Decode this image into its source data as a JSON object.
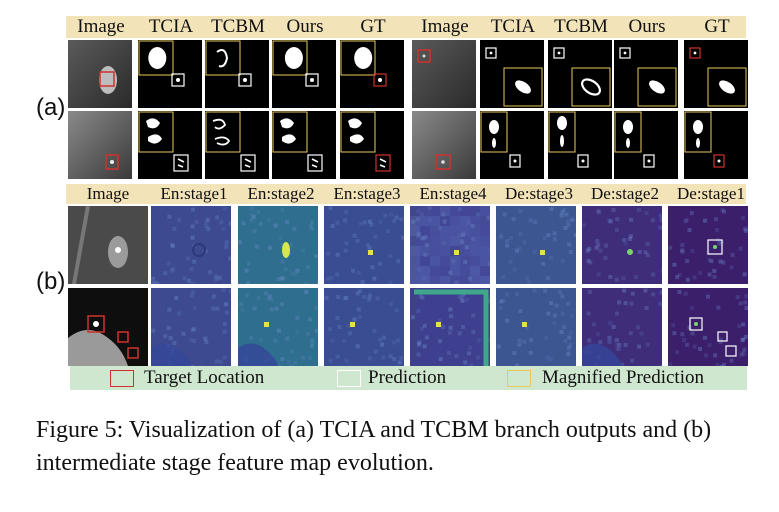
{
  "panel_a": {
    "label": "(a)",
    "headers": [
      "Image",
      "TCIA",
      "TCBM",
      "Ours",
      "GT",
      "Image",
      "TCIA",
      "TCBM",
      "Ours",
      "GT"
    ]
  },
  "panel_b": {
    "label": "(b)",
    "headers": [
      "Image",
      "En:stage1",
      "En:stage2",
      "En:stage3",
      "En:stage4",
      "De:stage3",
      "De:stage2",
      "De:stage1"
    ]
  },
  "legend": {
    "target_location": "Target Location",
    "prediction": "Prediction",
    "magnified_prediction": "Magnified Prediction",
    "colors": {
      "target": "#d0312d",
      "prediction": "#ffffff",
      "magnified": "#e8c85a"
    }
  },
  "caption": {
    "text": "Figure 5: Visualization of (a) TCIA and TCBM branch outputs and (b) intermediate stage feature map evolution."
  }
}
